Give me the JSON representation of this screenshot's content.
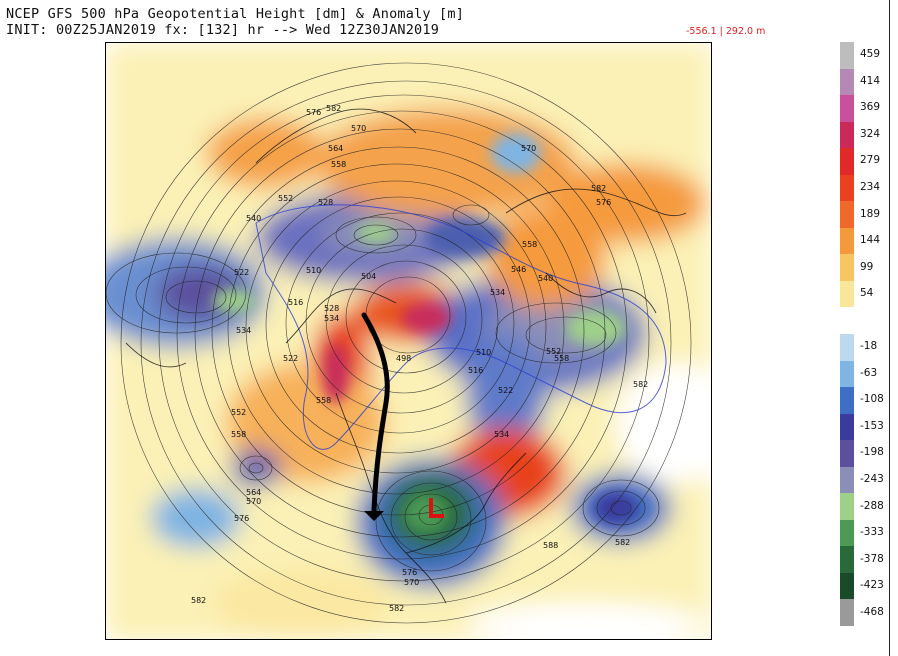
{
  "header": {
    "title_line1": "NCEP GFS 500 hPa Geopotential Height [dm] & Anomaly [m]",
    "title_line2": "INIT: 00Z25JAN2019 fx: [132] hr --> Wed 12Z30JAN2019",
    "range_text": "-556.1 | 292.0 m"
  },
  "colorbar": {
    "labels": [
      "459",
      "414",
      "369",
      "324",
      "279",
      "234",
      "189",
      "144",
      "99",
      "54",
      "-18",
      "-63",
      "-108",
      "-153",
      "-198",
      "-243",
      "-288",
      "-333",
      "-378",
      "-423",
      "-468"
    ],
    "colors": [
      "#bdbdbd",
      "#b48ab4",
      "#c9509b",
      "#c82a5a",
      "#e02a2a",
      "#e8421e",
      "#ef6a2a",
      "#f59a3c",
      "#f7c562",
      "#f8e79a",
      "#ffffff",
      "#bcd9ef",
      "#7fb4e3",
      "#3f6fc4",
      "#3b3b9c",
      "#5b4f9e",
      "#8b8fb8",
      "#9fd08a",
      "#4c9a55",
      "#2a6a3a",
      "#1a4a2a",
      "#9a9a9a"
    ]
  },
  "map": {
    "contour_labels": [
      "582",
      "576",
      "570",
      "564",
      "558",
      "552",
      "546",
      "540",
      "534",
      "528",
      "522",
      "516",
      "510",
      "504",
      "498",
      "588"
    ],
    "annotation_color": "#e01010",
    "arrow_color": "#000000"
  }
}
